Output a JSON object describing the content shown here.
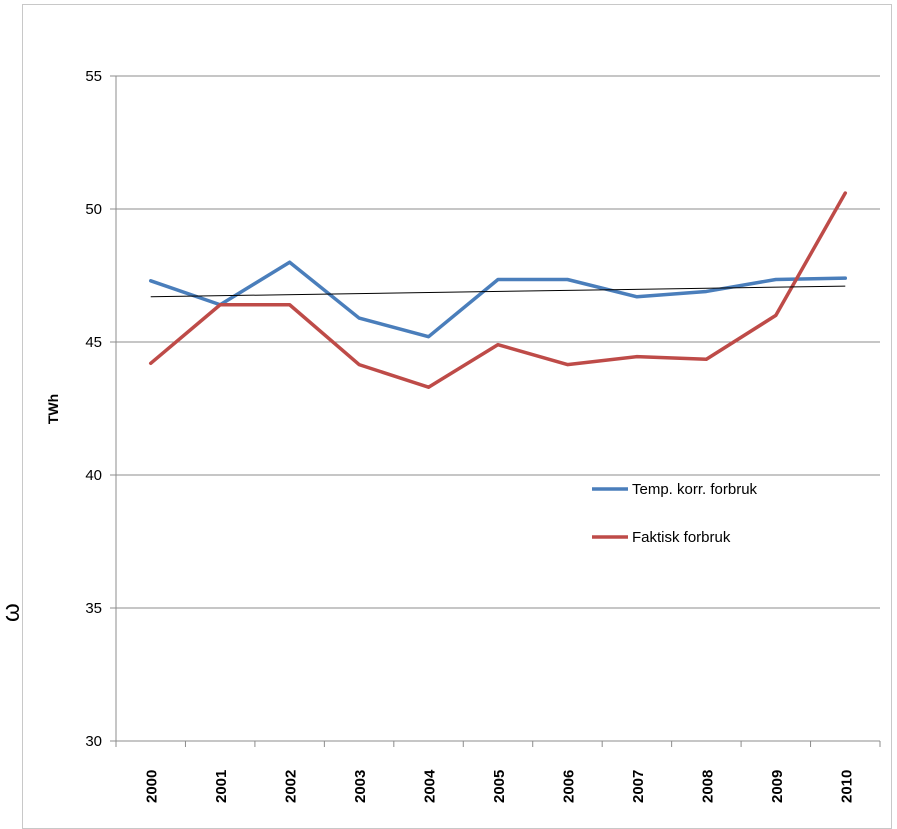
{
  "chart_data": {
    "type": "line",
    "ylabel": "TWh",
    "ylim": [
      30,
      55
    ],
    "yticks": [
      30,
      35,
      40,
      45,
      50,
      55
    ],
    "categories": [
      "2000",
      "2001",
      "2002",
      "2003",
      "2004",
      "2005",
      "2006",
      "2007",
      "2008",
      "2009",
      "2010"
    ],
    "grid": true,
    "legend_position": "center-right",
    "series": [
      {
        "name": "Temp. korr. forbruk",
        "color": "#4a7ebb",
        "values": [
          47.3,
          46.4,
          48.0,
          45.9,
          45.2,
          47.35,
          47.35,
          46.7,
          46.9,
          47.35,
          47.4
        ]
      },
      {
        "name": "Faktisk forbruk",
        "color": "#be4b48",
        "values": [
          44.2,
          46.4,
          46.4,
          44.15,
          43.3,
          44.9,
          44.15,
          44.45,
          44.35,
          46.0,
          50.6
        ]
      }
    ],
    "trendline": {
      "color": "#000000",
      "values": [
        46.7,
        47.1
      ]
    }
  },
  "stray_glyph": "ω"
}
